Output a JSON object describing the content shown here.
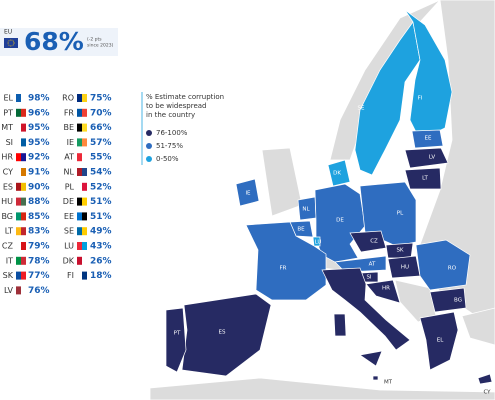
{
  "header": {
    "eu_label": "EU",
    "value": "68%",
    "change": [
      "(-2 pts",
      "since 2023)"
    ],
    "color": "#1a5fb4"
  },
  "legend": {
    "title": [
      "% Estimate corruption",
      "to be widespread",
      "in the country"
    ],
    "items": [
      {
        "label": "76-100%",
        "color": "#262a63"
      },
      {
        "label": "51-75%",
        "color": "#2f6dc0"
      },
      {
        "label": "0-50%",
        "color": "#1ea2df"
      }
    ]
  },
  "list": {
    "columns": [
      [
        {
          "code": "EL",
          "value": "98%",
          "flag": [
            "#0d5eaf",
            "#ffffff"
          ]
        },
        {
          "code": "PT",
          "value": "96%",
          "flag": [
            "#046a38",
            "#da291c"
          ]
        },
        {
          "code": "MT",
          "value": "95%",
          "flag": [
            "#ffffff",
            "#cf142b"
          ]
        },
        {
          "code": "SI",
          "value": "95%",
          "flag": [
            "#ffffff",
            "#005da4"
          ]
        },
        {
          "code": "HR",
          "value": "92%",
          "flag": [
            "#ff0000",
            "#171796"
          ]
        },
        {
          "code": "CY",
          "value": "91%",
          "flag": [
            "#ffffff",
            "#d57800"
          ]
        },
        {
          "code": "ES",
          "value": "90%",
          "flag": [
            "#aa151b",
            "#f1bf00"
          ]
        },
        {
          "code": "HU",
          "value": "88%",
          "flag": [
            "#ce2939",
            "#477050"
          ]
        },
        {
          "code": "BG",
          "value": "85%",
          "flag": [
            "#00966e",
            "#d62612"
          ]
        },
        {
          "code": "LT",
          "value": "83%",
          "flag": [
            "#fdb913",
            "#c1272d"
          ]
        },
        {
          "code": "CZ",
          "value": "79%",
          "flag": [
            "#ffffff",
            "#d7141a"
          ]
        },
        {
          "code": "IT",
          "value": "78%",
          "flag": [
            "#009246",
            "#ce2b37"
          ]
        },
        {
          "code": "SK",
          "value": "77%",
          "flag": [
            "#0b4ea2",
            "#ee1c25"
          ]
        },
        {
          "code": "LV",
          "value": "76%",
          "flag": [
            "#9e3039",
            "#ffffff"
          ]
        }
      ],
      [
        {
          "code": "RO",
          "value": "75%",
          "flag": [
            "#002b7f",
            "#fcd116"
          ]
        },
        {
          "code": "FR",
          "value": "70%",
          "flag": [
            "#0055a4",
            "#ef4135"
          ]
        },
        {
          "code": "BE",
          "value": "66%",
          "flag": [
            "#000000",
            "#fdda24"
          ]
        },
        {
          "code": "IE",
          "value": "57%",
          "flag": [
            "#169b62",
            "#ff883e"
          ]
        },
        {
          "code": "AT",
          "value": "55%",
          "flag": [
            "#ed2939",
            "#ffffff"
          ]
        },
        {
          "code": "NL",
          "value": "54%",
          "flag": [
            "#ae1c28",
            "#21468b"
          ]
        },
        {
          "code": "PL",
          "value": "52%",
          "flag": [
            "#ffffff",
            "#dc143c"
          ]
        },
        {
          "code": "DE",
          "value": "51%",
          "flag": [
            "#000000",
            "#ffce00"
          ]
        },
        {
          "code": "EE",
          "value": "51%",
          "flag": [
            "#0072ce",
            "#000000"
          ]
        },
        {
          "code": "SE",
          "value": "49%",
          "flag": [
            "#006aa7",
            "#fecc00"
          ]
        },
        {
          "code": "LU",
          "value": "43%",
          "flag": [
            "#ed2939",
            "#00a1de"
          ]
        },
        {
          "code": "DK",
          "value": "26%",
          "flag": [
            "#c8102e",
            "#ffffff"
          ]
        },
        {
          "code": "FI",
          "value": "18%",
          "flag": [
            "#ffffff",
            "#003580"
          ]
        }
      ]
    ]
  },
  "map": {
    "regions": [
      {
        "label": "SE",
        "tier": 2
      },
      {
        "label": "FI",
        "tier": 2
      },
      {
        "label": "EE",
        "tier": 1
      },
      {
        "label": "LV",
        "tier": 0
      },
      {
        "label": "LT",
        "tier": 0
      },
      {
        "label": "DK",
        "tier": 2
      },
      {
        "label": "IE",
        "tier": 1
      },
      {
        "label": "NL",
        "tier": 1
      },
      {
        "label": "DE",
        "tier": 1
      },
      {
        "label": "PL",
        "tier": 1
      },
      {
        "label": "BE",
        "tier": 1
      },
      {
        "label": "LU",
        "tier": 2
      },
      {
        "label": "FR",
        "tier": 1
      },
      {
        "label": "CZ",
        "tier": 0
      },
      {
        "label": "SK",
        "tier": 0
      },
      {
        "label": "AT",
        "tier": 1
      },
      {
        "label": "HU",
        "tier": 0
      },
      {
        "label": "SI",
        "tier": 0
      },
      {
        "label": "HR",
        "tier": 0
      },
      {
        "label": "RO",
        "tier": 1
      },
      {
        "label": "BG",
        "tier": 0
      },
      {
        "label": "IT",
        "tier": 0
      },
      {
        "label": "ES",
        "tier": 0
      },
      {
        "label": "PT",
        "tier": 0
      },
      {
        "label": "EL",
        "tier": 0
      },
      {
        "label": "MT",
        "tier": 0
      },
      {
        "label": "CY",
        "tier": 0
      }
    ]
  }
}
